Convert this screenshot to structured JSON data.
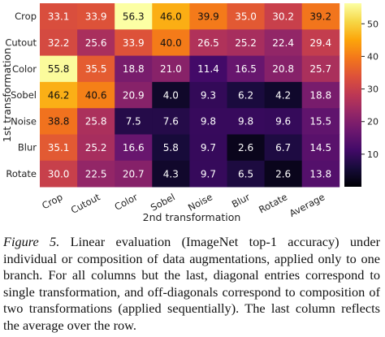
{
  "chart_data": {
    "type": "heatmap",
    "xlabel": "2nd transformation",
    "ylabel": "1st transformation",
    "x_categories": [
      "Crop",
      "Cutout",
      "Color",
      "Sobel",
      "Noise",
      "Blur",
      "Rotate",
      "Average"
    ],
    "y_categories": [
      "Crop",
      "Cutout",
      "Color",
      "Sobel",
      "Noise",
      "Blur",
      "Rotate"
    ],
    "values": [
      [
        33.1,
        33.9,
        56.3,
        46.0,
        39.9,
        35.0,
        30.2,
        39.2
      ],
      [
        32.2,
        25.6,
        33.9,
        40.0,
        26.5,
        25.2,
        22.4,
        29.4
      ],
      [
        55.8,
        35.5,
        18.8,
        21.0,
        11.4,
        16.5,
        20.8,
        25.7
      ],
      [
        46.2,
        40.6,
        20.9,
        4.0,
        9.3,
        6.2,
        4.2,
        18.8
      ],
      [
        38.8,
        25.8,
        7.5,
        7.6,
        9.8,
        9.8,
        9.6,
        15.5
      ],
      [
        35.1,
        25.2,
        16.6,
        5.8,
        9.7,
        2.6,
        6.7,
        14.5
      ],
      [
        30.0,
        22.5,
        20.7,
        4.3,
        9.7,
        6.5,
        2.6,
        13.8
      ]
    ],
    "value_labels": [
      [
        "33.1",
        "33.9",
        "56.3",
        "46.0",
        "39.9",
        "35.0",
        "30.2",
        "39.2"
      ],
      [
        "32.2",
        "25.6",
        "33.9",
        "40.0",
        "26.5",
        "25.2",
        "22.4",
        "29.4"
      ],
      [
        "55.8",
        "35.5",
        "18.8",
        "21.0",
        "11.4",
        "16.5",
        "20.8",
        "25.7"
      ],
      [
        "46.2",
        "40.6",
        "20.9",
        "4.0",
        "9.3",
        "6.2",
        "4.2",
        "18.8"
      ],
      [
        "38.8",
        "25.8",
        "7.5",
        "7.6",
        "9.8",
        "9.8",
        "9.6",
        "15.5"
      ],
      [
        "35.1",
        "25.2",
        "16.6",
        "5.8",
        "9.7",
        "2.6",
        "6.7",
        "14.5"
      ],
      [
        "30.0",
        "22.5",
        "20.7",
        "4.3",
        "9.7",
        "6.5",
        "2.6",
        "13.8"
      ]
    ],
    "colormap": "inferno",
    "vmin": 0,
    "vmax": 56.3,
    "colorbar": {
      "placement": "right",
      "ticks": [
        10,
        20,
        30,
        40,
        50
      ],
      "tick_labels": [
        "10",
        "20",
        "30",
        "40",
        "50"
      ]
    }
  },
  "caption": {
    "figure_label": "Figure 5.",
    "text": " Linear evaluation (ImageNet top-1 accuracy) under individual or composition of data augmentations, applied only to one branch. For all columns but the last, diagonal entries correspond to single transformation, and off-diagonals correspond to composition of two transformations (applied sequentially). The last column reflects the average over the row."
  }
}
